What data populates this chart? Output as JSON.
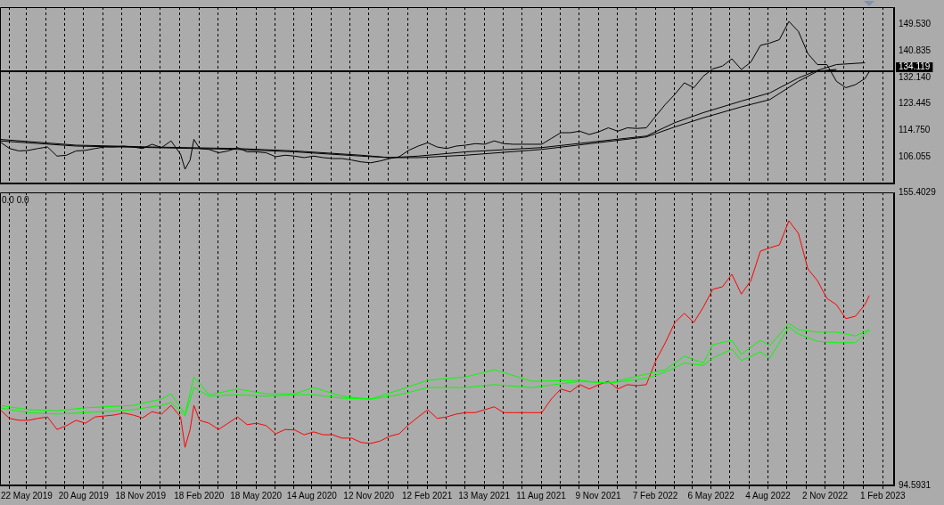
{
  "chart_data": [
    {
      "type": "line",
      "x": [
        "2019-04-10",
        "2019-04-25",
        "2019-05-10",
        "2019-05-25",
        "2019-06-09",
        "2019-06-24",
        "2019-07-09",
        "2019-07-24",
        "2019-08-08",
        "2019-08-23",
        "2019-09-07",
        "2019-09-22",
        "2019-10-07",
        "2019-10-22",
        "2019-11-06",
        "2019-11-21",
        "2019-12-06",
        "2019-12-21",
        "2020-01-05",
        "2020-01-20",
        "2020-01-27",
        "2020-02-04",
        "2020-02-10",
        "2020-02-19",
        "2020-03-05",
        "2020-03-20",
        "2020-04-04",
        "2020-04-19",
        "2020-05-04",
        "2020-05-19",
        "2020-06-03",
        "2020-06-18",
        "2020-07-03",
        "2020-07-18",
        "2020-08-02",
        "2020-08-17",
        "2020-09-01",
        "2020-09-16",
        "2020-10-01",
        "2020-10-16",
        "2020-10-31",
        "2020-11-15",
        "2020-11-30",
        "2020-12-15",
        "2020-12-30",
        "2021-01-14",
        "2021-01-29",
        "2021-02-13",
        "2021-02-28",
        "2021-03-15",
        "2021-03-30",
        "2021-04-14",
        "2021-04-29",
        "2021-05-14",
        "2021-05-29",
        "2021-06-13",
        "2021-06-28",
        "2021-07-13",
        "2021-07-28",
        "2021-08-12",
        "2021-08-27",
        "2021-09-11",
        "2021-09-26",
        "2021-10-11",
        "2021-10-26",
        "2021-11-10",
        "2021-11-25",
        "2021-12-10",
        "2021-12-25",
        "2022-01-09",
        "2022-01-24",
        "2022-02-08",
        "2022-02-23",
        "2022-03-10",
        "2022-03-25",
        "2022-04-09",
        "2022-04-24",
        "2022-05-09",
        "2022-05-24",
        "2022-06-08",
        "2022-06-23",
        "2022-07-08",
        "2022-07-23",
        "2022-08-07",
        "2022-08-22",
        "2022-09-06",
        "2022-09-21",
        "2022-10-06",
        "2022-10-21",
        "2022-11-05",
        "2022-11-20",
        "2022-12-05",
        "2022-12-20",
        "2023-01-04",
        "2023-01-11"
      ],
      "series": [
        {
          "color": "#000000",
          "values": [
            111.0,
            108.8,
            108.0,
            108.2,
            108.8,
            109.3,
            106.3,
            106.6,
            108.0,
            108.2,
            108.8,
            109.3,
            109.3,
            109.6,
            109.3,
            108.8,
            110.2,
            109.1,
            111.3,
            106.9,
            102.0,
            105.0,
            111.8,
            108.8,
            108.5,
            107.4,
            108.0,
            109.1,
            107.7,
            107.7,
            107.4,
            106.1,
            106.6,
            106.3,
            105.8,
            106.3,
            105.8,
            105.5,
            105.5,
            105.0,
            104.4,
            104.1,
            104.7,
            105.5,
            106.1,
            108.2,
            109.6,
            110.7,
            109.3,
            108.8,
            109.6,
            109.9,
            110.4,
            110.2,
            111.3,
            110.4,
            110.2,
            110.2,
            110.2,
            110.2,
            112.1,
            114.0,
            114.0,
            114.5,
            113.4,
            114.3,
            115.6,
            114.5,
            115.6,
            115.4,
            115.6,
            119.5,
            123.3,
            126.6,
            130.4,
            128.8,
            132.6,
            135.0,
            135.9,
            138.3,
            134.8,
            137.2,
            142.7,
            143.5,
            144.6,
            150.6,
            147.3,
            140.0,
            136.4,
            136.4,
            130.9,
            128.8,
            129.8,
            131.8,
            134.1
          ]
        },
        {
          "color": "#000000",
          "x": [
            "2019-04-10",
            "2019-08-08",
            "2019-12-06",
            "2020-04-19",
            "2020-07-18",
            "2020-10-31",
            "2020-12-15",
            "2021-01-29",
            "2021-04-14",
            "2021-08-12",
            "2022-01-24",
            "2022-03-10",
            "2022-04-24",
            "2022-06-23",
            "2022-08-07",
            "2022-09-21",
            "2022-10-21",
            "2022-11-20",
            "2023-01-04"
          ],
          "values": [
            111.8,
            109.9,
            109.3,
            108.8,
            108.0,
            106.6,
            105.8,
            106.3,
            107.7,
            109.1,
            112.9,
            117.3,
            120.6,
            124.4,
            127.1,
            132.0,
            134.5,
            136.4,
            137.0
          ]
        },
        {
          "color": "#000000",
          "x": [
            "2019-04-10",
            "2019-08-08",
            "2019-12-06",
            "2020-04-19",
            "2020-07-18",
            "2020-10-31",
            "2020-12-15",
            "2021-01-29",
            "2021-04-14",
            "2021-08-12",
            "2022-01-24",
            "2022-03-10",
            "2022-04-24",
            "2022-06-23",
            "2022-08-07",
            "2022-09-21",
            "2022-10-21",
            "2022-11-20"
          ],
          "values": [
            111.3,
            109.6,
            109.1,
            108.5,
            107.7,
            106.3,
            105.8,
            105.8,
            106.6,
            108.5,
            112.6,
            115.9,
            118.9,
            122.5,
            124.9,
            130.9,
            134.2,
            134.8
          ]
        }
      ],
      "xlim": [
        "2019-04-10",
        "2023-02-19"
      ],
      "xticks": [
        {
          "value": "2019-04-25",
          "label": null
        },
        {
          "value": "2019-05-22",
          "label": null
        },
        {
          "value": "2019-06-21",
          "label": null
        },
        {
          "value": "2019-07-21",
          "label": null
        },
        {
          "value": "2019-08-20",
          "label": null
        },
        {
          "value": "2019-09-19",
          "label": null
        },
        {
          "value": "2019-10-19",
          "label": null
        },
        {
          "value": "2019-11-18",
          "label": null
        },
        {
          "value": "2019-12-18",
          "label": null
        },
        {
          "value": "2020-01-18",
          "label": null
        },
        {
          "value": "2020-02-18",
          "label": null
        },
        {
          "value": "2020-03-19",
          "label": null
        },
        {
          "value": "2020-04-18",
          "label": null
        },
        {
          "value": "2020-05-18",
          "label": null
        },
        {
          "value": "2020-06-17",
          "label": null
        },
        {
          "value": "2020-07-16",
          "label": null
        },
        {
          "value": "2020-08-14",
          "label": null
        },
        {
          "value": "2020-09-13",
          "label": null
        },
        {
          "value": "2020-10-13",
          "label": null
        },
        {
          "value": "2020-11-12",
          "label": null
        },
        {
          "value": "2020-12-12",
          "label": null
        },
        {
          "value": "2021-01-12",
          "label": null
        },
        {
          "value": "2021-02-12",
          "label": null
        },
        {
          "value": "2021-03-14",
          "label": null
        },
        {
          "value": "2021-04-13",
          "label": null
        },
        {
          "value": "2021-05-13",
          "label": null
        },
        {
          "value": "2021-06-12",
          "label": null
        },
        {
          "value": "2021-07-12",
          "label": null
        },
        {
          "value": "2021-08-11",
          "label": null
        },
        {
          "value": "2021-09-10",
          "label": null
        },
        {
          "value": "2021-10-10",
          "label": null
        },
        {
          "value": "2021-11-09",
          "label": null
        },
        {
          "value": "2021-12-09",
          "label": null
        },
        {
          "value": "2022-01-08",
          "label": null
        },
        {
          "value": "2022-02-07",
          "label": null
        },
        {
          "value": "2022-03-09",
          "label": null
        },
        {
          "value": "2022-04-07",
          "label": null
        },
        {
          "value": "2022-05-06",
          "label": null
        },
        {
          "value": "2022-06-05",
          "label": null
        },
        {
          "value": "2022-07-05",
          "label": null
        },
        {
          "value": "2022-08-04",
          "label": null
        },
        {
          "value": "2022-09-03",
          "label": null
        },
        {
          "value": "2022-10-03",
          "label": null
        },
        {
          "value": "2022-11-02",
          "label": null
        },
        {
          "value": "2022-12-02",
          "label": null
        },
        {
          "value": "2023-01-01",
          "label": null
        },
        {
          "value": "2023-02-01",
          "label": null
        }
      ],
      "ylim": [
        97.3,
        155.3
      ],
      "yticks": [
        {
          "value": 106.055,
          "label": "106.055"
        },
        {
          "value": 114.75,
          "label": "114.750"
        },
        {
          "value": 123.445,
          "label": "123.445"
        },
        {
          "value": 132.14,
          "label": "132.140"
        },
        {
          "value": 140.835,
          "label": "140.835"
        },
        {
          "value": 149.53,
          "label": "149.530"
        }
      ],
      "grid": "x",
      "tick_labels": "y",
      "ref_lines": [
        {
          "axis": "y",
          "value": 134.119,
          "label": "134.119",
          "color": "#000000"
        }
      ]
    },
    {
      "type": "line",
      "x": [
        "2019-04-10",
        "2019-04-25",
        "2019-05-10",
        "2019-05-25",
        "2019-06-09",
        "2019-06-24",
        "2019-07-09",
        "2019-07-24",
        "2019-08-08",
        "2019-08-23",
        "2019-09-07",
        "2019-09-22",
        "2019-10-07",
        "2019-10-22",
        "2019-11-06",
        "2019-11-21",
        "2019-12-06",
        "2019-12-21",
        "2020-01-05",
        "2020-01-20",
        "2020-01-27",
        "2020-02-04",
        "2020-02-10",
        "2020-02-19",
        "2020-03-05",
        "2020-03-20",
        "2020-04-04",
        "2020-04-19",
        "2020-05-04",
        "2020-05-19",
        "2020-06-03",
        "2020-06-18",
        "2020-07-03",
        "2020-07-18",
        "2020-08-02",
        "2020-08-17",
        "2020-09-01",
        "2020-09-16",
        "2020-10-01",
        "2020-10-16",
        "2020-10-31",
        "2020-11-15",
        "2020-11-30",
        "2020-12-15",
        "2020-12-30",
        "2021-01-14",
        "2021-01-29",
        "2021-02-13",
        "2021-02-28",
        "2021-03-15",
        "2021-03-30",
        "2021-04-14",
        "2021-04-29",
        "2021-05-14",
        "2021-05-29",
        "2021-06-13",
        "2021-06-28",
        "2021-07-13",
        "2021-07-28",
        "2021-08-12",
        "2021-08-27",
        "2021-09-11",
        "2021-09-26",
        "2021-10-11",
        "2021-10-26",
        "2021-11-10",
        "2021-11-25",
        "2021-12-10",
        "2021-12-25",
        "2022-01-09",
        "2022-01-24",
        "2022-02-08",
        "2022-02-23",
        "2022-03-10",
        "2022-03-25",
        "2022-04-09",
        "2022-04-24",
        "2022-05-09",
        "2022-05-24",
        "2022-06-08",
        "2022-06-23",
        "2022-07-08",
        "2022-07-23",
        "2022-08-07",
        "2022-08-22",
        "2022-09-06",
        "2022-09-21",
        "2022-10-06",
        "2022-10-21",
        "2022-11-05",
        "2022-11-20",
        "2022-12-05",
        "2022-12-20",
        "2023-01-04",
        "2023-01-11"
      ],
      "series": [
        {
          "color": "#00ff00",
          "x": [
            "2019-04-10",
            "2019-05-25",
            "2019-07-09",
            "2019-08-23",
            "2019-11-06",
            "2019-12-21",
            "2020-01-05",
            "2020-01-27",
            "2020-02-10",
            "2020-03-05",
            "2020-04-19",
            "2020-06-03",
            "2020-07-18",
            "2020-08-17",
            "2020-10-01",
            "2020-11-15",
            "2020-12-30",
            "2021-02-13",
            "2021-04-14",
            "2021-05-29",
            "2021-07-28",
            "2021-10-11",
            "2021-11-25",
            "2022-01-24",
            "2022-02-23",
            "2022-03-25",
            "2022-04-24",
            "2022-05-09",
            "2022-06-08",
            "2022-06-23",
            "2022-07-23",
            "2022-08-07",
            "2022-09-06",
            "2022-09-21",
            "2022-10-21",
            "2022-11-20",
            "2022-12-20",
            "2023-01-11"
          ],
          "values": [
            111.2,
            110.3,
            110.1,
            110.7,
            111.2,
            112.5,
            113.6,
            109.4,
            117.1,
            113.4,
            114.6,
            113.6,
            113.6,
            114.9,
            113.1,
            112.5,
            114.4,
            116.4,
            117.1,
            118.6,
            116.2,
            116.4,
            115.8,
            117.7,
            118.6,
            121.4,
            120.0,
            123.8,
            124.7,
            121.8,
            124.7,
            123.6,
            128.2,
            126.9,
            126.4,
            126.4,
            125.6,
            126.9
          ]
        },
        {
          "color": "#00ff00",
          "x": [
            "2019-04-10",
            "2019-05-25",
            "2019-07-09",
            "2019-08-23",
            "2019-11-06",
            "2019-12-21",
            "2020-01-05",
            "2020-01-27",
            "2020-02-10",
            "2020-03-05",
            "2020-04-19",
            "2020-06-03",
            "2020-07-18",
            "2020-08-17",
            "2020-10-01",
            "2020-11-15",
            "2020-12-30",
            "2021-02-13",
            "2021-04-14",
            "2021-05-29",
            "2021-07-28",
            "2021-10-11",
            "2021-11-25",
            "2022-01-24",
            "2022-02-23",
            "2022-03-25",
            "2022-04-24",
            "2022-05-09",
            "2022-06-08",
            "2022-06-23",
            "2022-07-23",
            "2022-08-07",
            "2022-09-06",
            "2022-09-21",
            "2022-10-21",
            "2022-11-20",
            "2022-12-20",
            "2023-01-11"
          ],
          "values": [
            110.7,
            109.7,
            109.4,
            109.7,
            110.3,
            111.2,
            111.8,
            109.0,
            114.9,
            113.1,
            113.4,
            113.1,
            113.4,
            113.4,
            112.7,
            112.5,
            113.4,
            114.9,
            114.9,
            115.5,
            114.9,
            116.2,
            115.8,
            116.8,
            118.1,
            120.0,
            119.5,
            121.0,
            122.9,
            120.5,
            122.3,
            121.0,
            127.5,
            126.0,
            124.5,
            124.2,
            124.2,
            126.9
          ]
        },
        {
          "color": "#ff0000",
          "values": [
            110.3,
            108.5,
            108.1,
            108.1,
            108.5,
            108.8,
            106.2,
            107.0,
            108.1,
            107.5,
            108.8,
            109.0,
            109.2,
            109.6,
            109.2,
            108.6,
            109.9,
            109.4,
            111.2,
            108.8,
            102.5,
            106.2,
            111.2,
            108.1,
            107.5,
            106.2,
            107.5,
            108.8,
            107.2,
            107.5,
            107.0,
            105.3,
            106.2,
            106.1,
            105.1,
            105.7,
            105.1,
            105.1,
            104.4,
            104.4,
            103.5,
            103.3,
            103.8,
            104.8,
            105.3,
            107.2,
            108.8,
            110.3,
            108.5,
            108.8,
            109.4,
            109.7,
            109.7,
            110.3,
            110.9,
            109.7,
            109.7,
            109.7,
            109.7,
            109.7,
            112.5,
            114.6,
            114.0,
            115.5,
            114.6,
            115.5,
            116.2,
            114.6,
            115.5,
            115.3,
            115.5,
            120.5,
            124.2,
            128.4,
            130.3,
            128.4,
            131.6,
            135.3,
            135.8,
            138.4,
            134.3,
            137.1,
            143.2,
            143.9,
            144.5,
            149.5,
            146.9,
            139.5,
            137.1,
            133.4,
            132.1,
            129.2,
            129.7,
            132.1,
            134.0
          ]
        }
      ],
      "xlim": [
        "2019-04-10",
        "2023-02-19"
      ],
      "xticks": [
        {
          "value": "2019-04-25",
          "label": null
        },
        {
          "value": "2019-05-22",
          "label": "22 May 2019"
        },
        {
          "value": "2019-06-21",
          "label": null
        },
        {
          "value": "2019-07-21",
          "label": null
        },
        {
          "value": "2019-08-20",
          "label": "20 Aug 2019"
        },
        {
          "value": "2019-09-19",
          "label": null
        },
        {
          "value": "2019-10-19",
          "label": null
        },
        {
          "value": "2019-11-18",
          "label": "18 Nov 2019"
        },
        {
          "value": "2019-12-18",
          "label": null
        },
        {
          "value": "2020-01-18",
          "label": null
        },
        {
          "value": "2020-02-18",
          "label": "18 Feb 2020"
        },
        {
          "value": "2020-03-19",
          "label": null
        },
        {
          "value": "2020-04-18",
          "label": null
        },
        {
          "value": "2020-05-18",
          "label": "18 May 2020"
        },
        {
          "value": "2020-06-17",
          "label": null
        },
        {
          "value": "2020-07-16",
          "label": null
        },
        {
          "value": "2020-08-14",
          "label": "14 Aug 2020"
        },
        {
          "value": "2020-09-13",
          "label": null
        },
        {
          "value": "2020-10-13",
          "label": null
        },
        {
          "value": "2020-11-12",
          "label": "12 Nov 2020"
        },
        {
          "value": "2020-12-12",
          "label": null
        },
        {
          "value": "2021-01-12",
          "label": null
        },
        {
          "value": "2021-02-12",
          "label": "12 Feb 2021"
        },
        {
          "value": "2021-03-14",
          "label": null
        },
        {
          "value": "2021-04-13",
          "label": null
        },
        {
          "value": "2021-05-13",
          "label": "13 May 2021"
        },
        {
          "value": "2021-06-12",
          "label": null
        },
        {
          "value": "2021-07-12",
          "label": null
        },
        {
          "value": "2021-08-11",
          "label": "11 Aug 2021"
        },
        {
          "value": "2021-09-10",
          "label": null
        },
        {
          "value": "2021-10-10",
          "label": null
        },
        {
          "value": "2021-11-09",
          "label": "9 Nov 2021"
        },
        {
          "value": "2021-12-09",
          "label": null
        },
        {
          "value": "2022-01-08",
          "label": null
        },
        {
          "value": "2022-02-07",
          "label": "7 Feb 2022"
        },
        {
          "value": "2022-03-09",
          "label": null
        },
        {
          "value": "2022-04-07",
          "label": null
        },
        {
          "value": "2022-05-06",
          "label": "6 May 2022"
        },
        {
          "value": "2022-06-05",
          "label": null
        },
        {
          "value": "2022-07-05",
          "label": null
        },
        {
          "value": "2022-08-04",
          "label": "4 Aug 2022"
        },
        {
          "value": "2022-09-03",
          "label": null
        },
        {
          "value": "2022-10-03",
          "label": null
        },
        {
          "value": "2022-11-02",
          "label": "2 Nov 2022"
        },
        {
          "value": "2022-12-02",
          "label": null
        },
        {
          "value": "2023-01-01",
          "label": null
        },
        {
          "value": "2023-02-01",
          "label": "1 Feb 2023"
        }
      ],
      "ylim": [
        94.5931,
        155.4029
      ],
      "yticks": [
        94.5931,
        155.4029
      ],
      "grid": "x",
      "annotations": [
        "0.0 0.0"
      ]
    }
  ]
}
